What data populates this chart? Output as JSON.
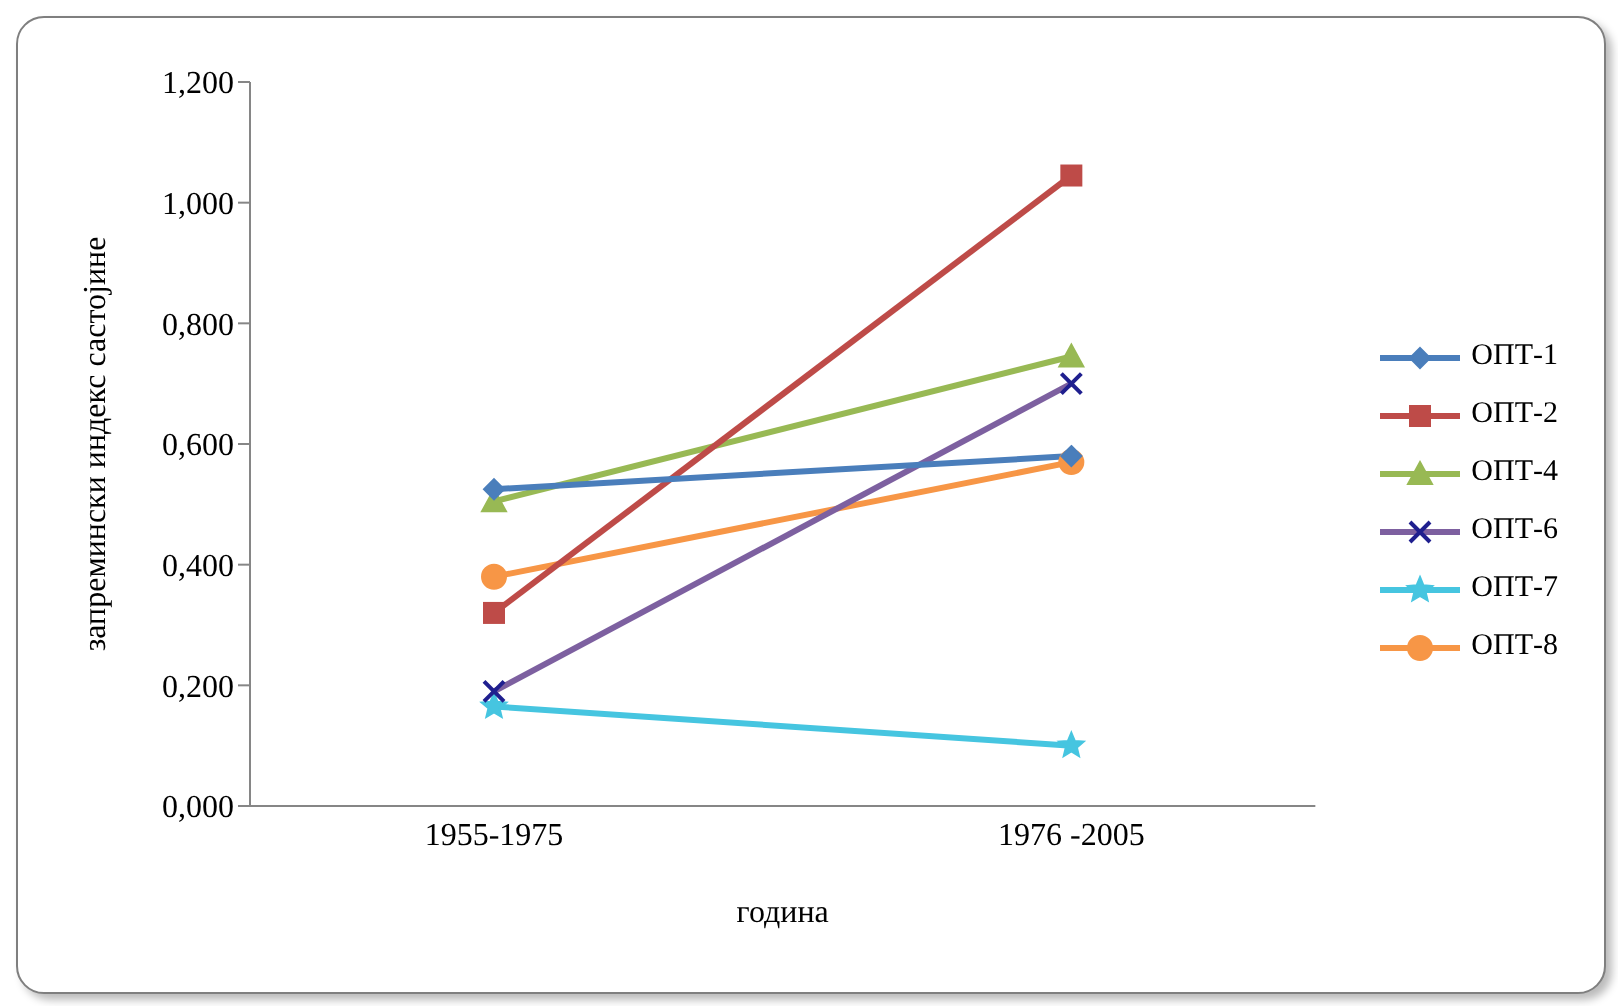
{
  "chart_data": {
    "type": "line",
    "xlabel": "година",
    "ylabel": "запремински индекс састојине",
    "categories": [
      "1955-1975",
      "1976 -2005"
    ],
    "series": [
      {
        "name": "ОПТ-1",
        "color": "#4a7ebb",
        "marker": "diamond",
        "values": [
          0.525,
          0.58
        ]
      },
      {
        "name": "ОПТ-2",
        "color": "#be4b48",
        "marker": "square",
        "values": [
          0.32,
          1.045
        ]
      },
      {
        "name": "ОПТ-4",
        "color": "#98b954",
        "marker": "triangle",
        "values": [
          0.505,
          0.745
        ]
      },
      {
        "name": "ОПТ-6",
        "color": "#7d60a0",
        "marker": "cross",
        "values": [
          0.19,
          0.7
        ]
      },
      {
        "name": "ОПТ-7",
        "color": "#46c5e0",
        "marker": "star",
        "values": [
          0.165,
          0.1
        ]
      },
      {
        "name": "ОПТ-8",
        "color": "#f79646",
        "marker": "circle",
        "values": [
          0.38,
          0.57
        ]
      }
    ],
    "ylim": [
      0,
      1.2
    ],
    "yticks": [
      {
        "value": 0,
        "label": "0,000"
      },
      {
        "value": 0.2,
        "label": "0,200"
      },
      {
        "value": 0.4,
        "label": "0,400"
      },
      {
        "value": 0.6,
        "label": "0,600"
      },
      {
        "value": 0.8,
        "label": "0,800"
      },
      {
        "value": 1,
        "label": "1,000"
      },
      {
        "value": 1.2,
        "label": "1,200"
      }
    ],
    "grid": false,
    "legend": "right"
  }
}
